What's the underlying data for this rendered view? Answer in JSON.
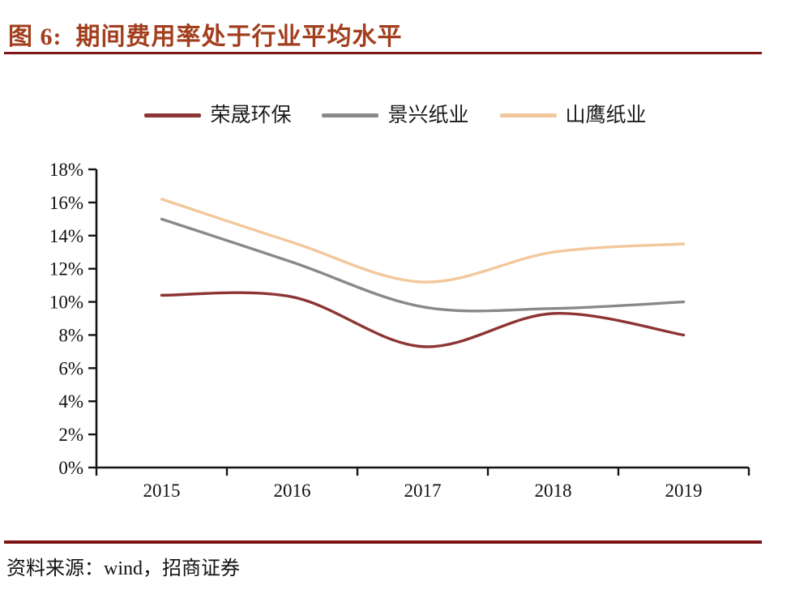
{
  "page": {
    "title": "图 6:  期间费用率处于行业平均水平",
    "source": "资料来源：wind，招商证券"
  },
  "colors": {
    "title_text": "#A23E1D",
    "rule": "#7C1518",
    "axis": "#141414",
    "tick_label": "#111111"
  },
  "chart_data": {
    "type": "line",
    "title": "期间费用率处于行业平均水平",
    "categories": [
      "2015",
      "2016",
      "2017",
      "2018",
      "2019"
    ],
    "series": [
      {
        "name": "荣晟环保",
        "color": "#8C3534",
        "values": [
          10.4,
          10.3,
          7.3,
          9.3,
          8.0
        ]
      },
      {
        "name": "景兴纸业",
        "color": "#898989",
        "values": [
          15.0,
          12.4,
          9.7,
          9.6,
          10.0
        ]
      },
      {
        "name": "山鹰纸业",
        "color": "#F3C79C",
        "values": [
          16.2,
          13.6,
          11.2,
          13.0,
          13.5
        ]
      }
    ],
    "xlabel": "",
    "ylabel": "",
    "ylim": [
      0,
      18
    ],
    "y_tick_step": 2,
    "y_ticks": [
      "0%",
      "2%",
      "4%",
      "6%",
      "8%",
      "10%",
      "12%",
      "14%",
      "16%",
      "18%"
    ],
    "grid": false,
    "legend_position": "top",
    "line_style": "smooth"
  }
}
